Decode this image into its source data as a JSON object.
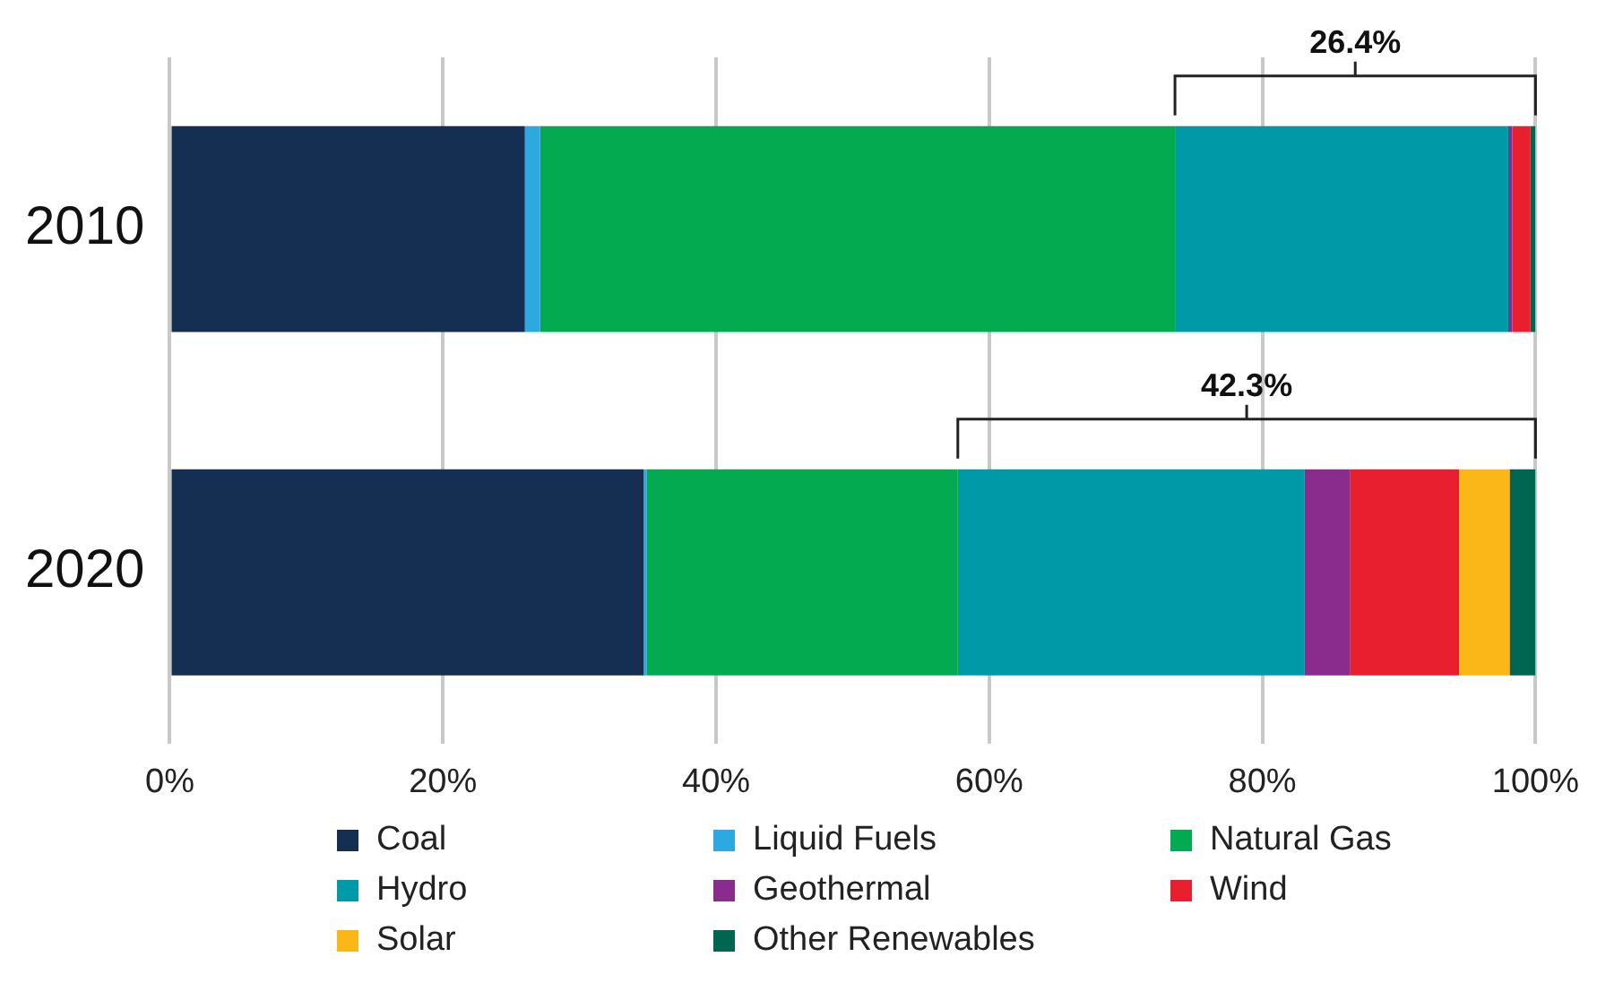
{
  "chart_data": {
    "type": "bar",
    "orientation": "horizontal",
    "stacked": true,
    "categories": [
      "2010",
      "2020"
    ],
    "series": [
      {
        "name": "Coal",
        "color": "#142f52",
        "values": [
          26.0,
          34.7
        ]
      },
      {
        "name": "Liquid Fuels",
        "color": "#2ea8e0",
        "values": [
          1.1,
          0.2
        ]
      },
      {
        "name": "Natural Gas",
        "color": "#03aa4f",
        "values": [
          46.5,
          22.8
        ]
      },
      {
        "name": "Hydro",
        "color": "#0099a8",
        "values": [
          24.4,
          25.4
        ]
      },
      {
        "name": "Geothermal",
        "color": "#892c8e",
        "values": [
          0.3,
          3.3
        ]
      },
      {
        "name": "Wind",
        "color": "#e81f2e",
        "values": [
          1.3,
          8.0
        ]
      },
      {
        "name": "Solar",
        "color": "#fbb718",
        "values": [
          0,
          3.7
        ]
      },
      {
        "name": "Other Renewables",
        "color": "#006651",
        "values": [
          0.4,
          1.9
        ]
      }
    ],
    "xlim": [
      0,
      100
    ],
    "xticks": [
      {
        "value": 0,
        "label": "0%"
      },
      {
        "value": 20,
        "label": "20%"
      },
      {
        "value": 40,
        "label": "40%"
      },
      {
        "value": 60,
        "label": "60%"
      },
      {
        "value": 80,
        "label": "80%"
      },
      {
        "value": 100,
        "label": "100%"
      }
    ],
    "grid": "x",
    "legend": "bottom",
    "annotations": [
      "26.4%",
      "42.3%"
    ]
  }
}
